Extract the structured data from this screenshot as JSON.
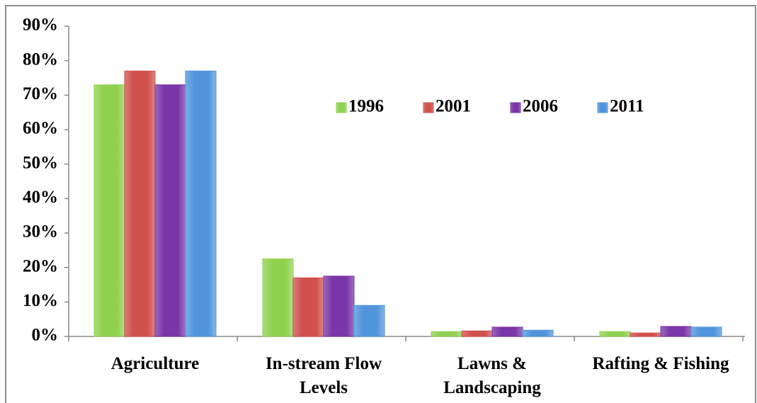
{
  "chart_data": {
    "type": "bar",
    "categories": [
      "Agriculture",
      "In-stream Flow Levels",
      "Lawns & Landscaping",
      "Rafting & Fishing"
    ],
    "series": [
      {
        "name": "1996",
        "color": "#8fd14f",
        "values": [
          73,
          22.5,
          1.4,
          1.4
        ]
      },
      {
        "name": "2001",
        "color": "#d0504d",
        "values": [
          77,
          17,
          1.6,
          1
        ]
      },
      {
        "name": "2006",
        "color": "#7a35a8",
        "values": [
          73,
          17.5,
          2.7,
          2.9
        ]
      },
      {
        "name": "2011",
        "color": "#4f94dc",
        "values": [
          77,
          9,
          1.8,
          2.7
        ]
      }
    ],
    "ylim": [
      0,
      90
    ],
    "yticks": [
      {
        "value": 0,
        "label": "0%"
      },
      {
        "value": 10,
        "label": "10%"
      },
      {
        "value": 20,
        "label": "20%"
      },
      {
        "value": 30,
        "label": "30%"
      },
      {
        "value": 40,
        "label": "40%"
      },
      {
        "value": 50,
        "label": "50%"
      },
      {
        "value": 60,
        "label": "60%"
      },
      {
        "value": 70,
        "label": "70%"
      },
      {
        "value": 80,
        "label": "80%"
      },
      {
        "value": 90,
        "label": "90%"
      }
    ],
    "legend": "top"
  }
}
